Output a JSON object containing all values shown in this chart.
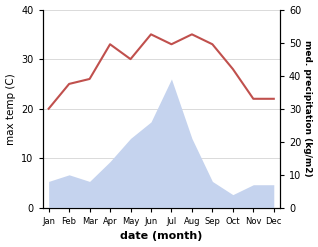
{
  "months": [
    "Jan",
    "Feb",
    "Mar",
    "Apr",
    "May",
    "Jun",
    "Jul",
    "Aug",
    "Sep",
    "Oct",
    "Nov",
    "Dec"
  ],
  "temperature": [
    20,
    25,
    26,
    33,
    30,
    35,
    33,
    35,
    33,
    28,
    22,
    22
  ],
  "precipitation": [
    8,
    10,
    8,
    14,
    21,
    26,
    39,
    21,
    8,
    4,
    7,
    7
  ],
  "temp_color": "#c0504d",
  "precip_fill_color": "#c5d3ee",
  "temp_ylim": [
    0,
    40
  ],
  "precip_ylim": [
    0,
    60
  ],
  "xlabel": "date (month)",
  "ylabel_left": "max temp (C)",
  "ylabel_right": "med. precipitation (kg/m2)",
  "bg_color": "#ffffff",
  "grid_color": "#cccccc"
}
